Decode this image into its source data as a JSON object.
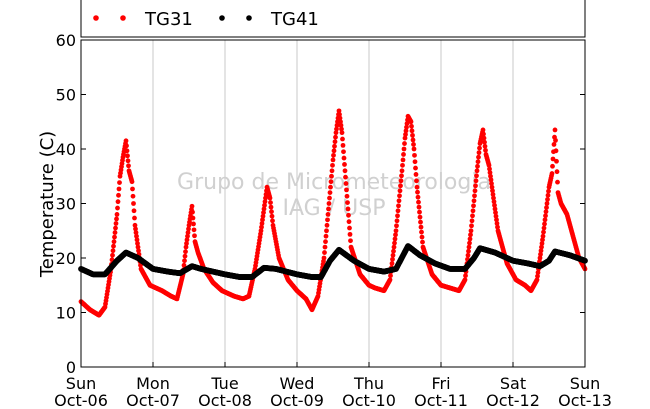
{
  "chart_data": {
    "type": "scatter",
    "title": "",
    "xlabel": "",
    "ylabel": "Temperature (C)",
    "ylim": [
      0,
      60
    ],
    "xlim": [
      "2013-10-06 00:00",
      "2013-10-13 00:00"
    ],
    "yticks": [
      "0",
      "10",
      "20",
      "30",
      "40",
      "50",
      "60"
    ],
    "xticks": [
      {
        "day": "Sun",
        "date": "Oct-06"
      },
      {
        "day": "Mon",
        "date": "Oct-07"
      },
      {
        "day": "Tue",
        "date": "Oct-08"
      },
      {
        "day": "Wed",
        "date": "Oct-09"
      },
      {
        "day": "Thu",
        "date": "Oct-10"
      },
      {
        "day": "Fri",
        "date": "Oct-11"
      },
      {
        "day": "Sat",
        "date": "Oct-12"
      },
      {
        "day": "Sun",
        "date": "Oct-13"
      }
    ],
    "grid": "vertical",
    "legend_position": "top",
    "watermark": [
      "Grupo de Micrometeorologia",
      "IAG / USP"
    ],
    "series": [
      {
        "name": "TG31",
        "color": "#ff0000",
        "marker": "dot",
        "points": [
          [
            "2013-10-06 00:00",
            12.0
          ],
          [
            "2013-10-06 03:00",
            10.5
          ],
          [
            "2013-10-06 06:00",
            9.5
          ],
          [
            "2013-10-06 08:00",
            11.0
          ],
          [
            "2013-10-06 10:00",
            18.0
          ],
          [
            "2013-10-06 12:00",
            28.0
          ],
          [
            "2013-10-06 13:00",
            35.0
          ],
          [
            "2013-10-06 14:00",
            38.5
          ],
          [
            "2013-10-06 15:00",
            41.5
          ],
          [
            "2013-10-06 16:00",
            36.0
          ],
          [
            "2013-10-06 17:00",
            34.0
          ],
          [
            "2013-10-06 18:00",
            26.0
          ],
          [
            "2013-10-06 20:00",
            18.0
          ],
          [
            "2013-10-06 23:00",
            15.0
          ],
          [
            "2013-10-07 03:00",
            14.0
          ],
          [
            "2013-10-07 06:00",
            13.0
          ],
          [
            "2013-10-07 08:00",
            12.5
          ],
          [
            "2013-10-07 10:00",
            17.0
          ],
          [
            "2013-10-07 11:00",
            22.0
          ],
          [
            "2013-10-07 12:00",
            26.0
          ],
          [
            "2013-10-07 13:00",
            29.5
          ],
          [
            "2013-10-07 14:00",
            23.0
          ],
          [
            "2013-10-07 15:00",
            21.0
          ],
          [
            "2013-10-07 17:00",
            18.0
          ],
          [
            "2013-10-07 20:00",
            15.5
          ],
          [
            "2013-10-07 23:00",
            14.0
          ],
          [
            "2013-10-08 03:00",
            13.0
          ],
          [
            "2013-10-08 06:00",
            12.5
          ],
          [
            "2013-10-08 08:00",
            13.0
          ],
          [
            "2013-10-08 10:00",
            18.0
          ],
          [
            "2013-10-08 12:00",
            25.0
          ],
          [
            "2013-10-08 13:00",
            29.0
          ],
          [
            "2013-10-08 14:00",
            33.0
          ],
          [
            "2013-10-08 15:00",
            31.0
          ],
          [
            "2013-10-08 16:00",
            26.0
          ],
          [
            "2013-10-08 18:00",
            20.0
          ],
          [
            "2013-10-08 21:00",
            16.0
          ],
          [
            "2013-10-09 00:00",
            14.0
          ],
          [
            "2013-10-09 03:00",
            12.5
          ],
          [
            "2013-10-09 05:00",
            10.5
          ],
          [
            "2013-10-09 07:00",
            13.0
          ],
          [
            "2013-10-09 09:00",
            20.0
          ],
          [
            "2013-10-09 11:00",
            32.0
          ],
          [
            "2013-10-09 12:00",
            38.0
          ],
          [
            "2013-10-09 13:00",
            43.0
          ],
          [
            "2013-10-09 14:00",
            47.0
          ],
          [
            "2013-10-09 15:00",
            43.0
          ],
          [
            "2013-10-09 16:00",
            36.0
          ],
          [
            "2013-10-09 18:00",
            22.0
          ],
          [
            "2013-10-09 21:00",
            17.0
          ],
          [
            "2013-10-10 00:00",
            15.0
          ],
          [
            "2013-10-10 02:00",
            14.5
          ],
          [
            "2013-10-10 05:00",
            14.0
          ],
          [
            "2013-10-10 07:00",
            16.0
          ],
          [
            "2013-10-10 09:00",
            25.0
          ],
          [
            "2013-10-10 11:00",
            36.0
          ],
          [
            "2013-10-10 12:00",
            42.0
          ],
          [
            "2013-10-10 13:00",
            46.0
          ],
          [
            "2013-10-10 14:00",
            45.0
          ],
          [
            "2013-10-10 15:00",
            40.0
          ],
          [
            "2013-10-10 16:00",
            33.0
          ],
          [
            "2013-10-10 18:00",
            22.0
          ],
          [
            "2013-10-10 21:00",
            17.0
          ],
          [
            "2013-10-11 00:00",
            15.0
          ],
          [
            "2013-10-11 03:00",
            14.5
          ],
          [
            "2013-10-11 06:00",
            14.0
          ],
          [
            "2013-10-11 08:00",
            16.0
          ],
          [
            "2013-10-11 10:00",
            25.0
          ],
          [
            "2013-10-11 12:00",
            36.0
          ],
          [
            "2013-10-11 13:00",
            41.0
          ],
          [
            "2013-10-11 14:00",
            43.5
          ],
          [
            "2013-10-11 15:00",
            39.0
          ],
          [
            "2013-10-11 16:00",
            37.0
          ],
          [
            "2013-10-11 17:00",
            33.0
          ],
          [
            "2013-10-11 19:00",
            25.0
          ],
          [
            "2013-10-11 22:00",
            19.0
          ],
          [
            "2013-10-12 01:00",
            16.0
          ],
          [
            "2013-10-12 04:00",
            15.0
          ],
          [
            "2013-10-12 06:00",
            14.0
          ],
          [
            "2013-10-12 08:00",
            16.0
          ],
          [
            "2013-10-12 10:00",
            24.0
          ],
          [
            "2013-10-12 12:00",
            33.0
          ],
          [
            "2013-10-12 13:00",
            35.5
          ],
          [
            "2013-10-12 14:00",
            43.5
          ],
          [
            "2013-10-12 15:00",
            32.0
          ],
          [
            "2013-10-12 16:00",
            30.0
          ],
          [
            "2013-10-12 18:00",
            28.0
          ],
          [
            "2013-10-12 20:00",
            24.0
          ],
          [
            "2013-10-12 22:00",
            20.0
          ],
          [
            "2013-10-13 00:00",
            18.0
          ]
        ]
      },
      {
        "name": "TG41",
        "color": "#000000",
        "marker": "dot",
        "points": [
          [
            "2013-10-06 00:00",
            18.0
          ],
          [
            "2013-10-06 04:00",
            17.0
          ],
          [
            "2013-10-06 08:00",
            17.0
          ],
          [
            "2013-10-06 12:00",
            19.5
          ],
          [
            "2013-10-06 15:00",
            21.0
          ],
          [
            "2013-10-06 19:00",
            20.0
          ],
          [
            "2013-10-07 00:00",
            18.0
          ],
          [
            "2013-10-07 05:00",
            17.5
          ],
          [
            "2013-10-07 09:00",
            17.2
          ],
          [
            "2013-10-07 13:00",
            18.5
          ],
          [
            "2013-10-07 16:00",
            18.0
          ],
          [
            "2013-10-07 20:00",
            17.5
          ],
          [
            "2013-10-08 00:00",
            17.0
          ],
          [
            "2013-10-08 05:00",
            16.5
          ],
          [
            "2013-10-08 09:00",
            16.5
          ],
          [
            "2013-10-08 13:00",
            18.2
          ],
          [
            "2013-10-08 17:00",
            18.0
          ],
          [
            "2013-10-09 00:00",
            17.0
          ],
          [
            "2013-10-09 05:00",
            16.5
          ],
          [
            "2013-10-09 08:00",
            16.5
          ],
          [
            "2013-10-09 11:00",
            19.5
          ],
          [
            "2013-10-09 14:00",
            21.5
          ],
          [
            "2013-10-09 19:00",
            19.5
          ],
          [
            "2013-10-10 00:00",
            18.0
          ],
          [
            "2013-10-10 05:00",
            17.5
          ],
          [
            "2013-10-10 09:00",
            18.0
          ],
          [
            "2013-10-10 13:00",
            22.2
          ],
          [
            "2013-10-10 17:00",
            20.5
          ],
          [
            "2013-10-10 22:00",
            19.0
          ],
          [
            "2013-10-11 03:00",
            18.0
          ],
          [
            "2013-10-11 08:00",
            18.0
          ],
          [
            "2013-10-11 11:00",
            20.0
          ],
          [
            "2013-10-11 13:00",
            21.8
          ],
          [
            "2013-10-11 18:00",
            21.0
          ],
          [
            "2013-10-12 00:00",
            19.5
          ],
          [
            "2013-10-12 05:00",
            19.0
          ],
          [
            "2013-10-12 09:00",
            18.5
          ],
          [
            "2013-10-12 12:00",
            19.5
          ],
          [
            "2013-10-12 14:00",
            21.2
          ],
          [
            "2013-10-12 19:00",
            20.5
          ],
          [
            "2013-10-13 00:00",
            19.5
          ]
        ]
      }
    ]
  }
}
